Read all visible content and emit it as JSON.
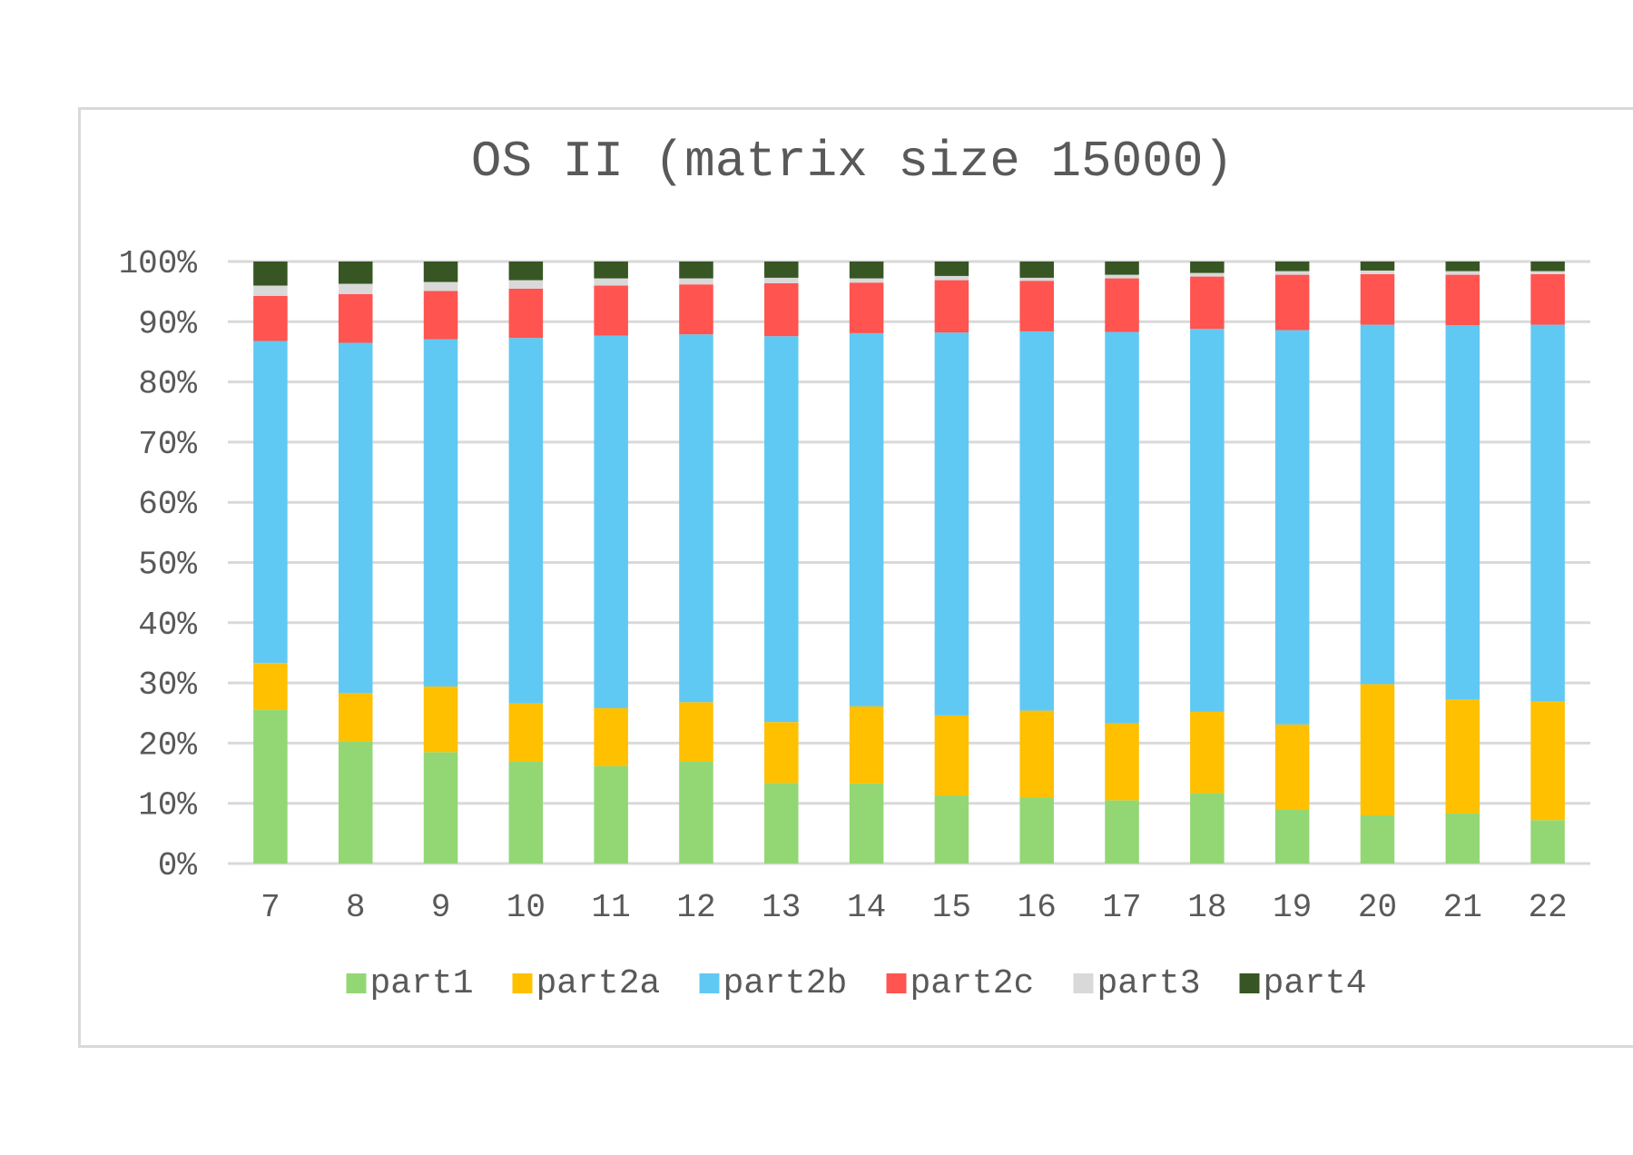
{
  "chart_data": {
    "type": "bar",
    "stacked": true,
    "percent_stacked": true,
    "title": "OS II (matrix size 15000)",
    "xlabel": "",
    "ylabel": "",
    "categories": [
      "7",
      "8",
      "9",
      "10",
      "11",
      "12",
      "13",
      "14",
      "15",
      "16",
      "17",
      "18",
      "19",
      "20",
      "21",
      "22"
    ],
    "ylim": [
      0,
      100
    ],
    "yticks": [
      0,
      10,
      20,
      30,
      40,
      50,
      60,
      70,
      80,
      90,
      100
    ],
    "ytick_labels": [
      "0%",
      "10%",
      "20%",
      "30%",
      "40%",
      "50%",
      "60%",
      "70%",
      "80%",
      "90%",
      "100%"
    ],
    "grid": true,
    "legend_position": "bottom",
    "series": [
      {
        "name": "part1",
        "color": "#92d774",
        "values": [
          25.5,
          20.3,
          18.5,
          16.9,
          16.2,
          16.9,
          13.4,
          13.3,
          11.3,
          11.0,
          10.5,
          11.7,
          8.9,
          8.0,
          8.3,
          7.2
        ]
      },
      {
        "name": "part2a",
        "color": "#ffc000",
        "values": [
          7.8,
          8.0,
          10.9,
          9.7,
          9.6,
          9.9,
          10.1,
          12.8,
          13.3,
          14.4,
          12.8,
          13.5,
          14.2,
          21.8,
          19.0,
          19.7
        ]
      },
      {
        "name": "part2b",
        "color": "#60c9f3",
        "values": [
          53.5,
          58.2,
          57.7,
          60.7,
          61.9,
          61.1,
          64.1,
          62.0,
          63.6,
          63.0,
          65.0,
          63.6,
          65.5,
          59.7,
          62.1,
          62.6
        ]
      },
      {
        "name": "part2c",
        "color": "#ff5450",
        "values": [
          7.5,
          8.1,
          8.0,
          8.2,
          8.3,
          8.3,
          8.8,
          8.4,
          8.7,
          8.4,
          8.9,
          8.7,
          9.2,
          8.4,
          8.4,
          8.4
        ]
      },
      {
        "name": "part3",
        "color": "#d9d9d9",
        "values": [
          1.7,
          1.7,
          1.5,
          1.4,
          1.2,
          1.0,
          0.9,
          0.7,
          0.7,
          0.5,
          0.6,
          0.6,
          0.6,
          0.6,
          0.6,
          0.5
        ]
      },
      {
        "name": "part4",
        "color": "#375623",
        "values": [
          4.0,
          3.7,
          3.4,
          3.1,
          2.8,
          2.8,
          2.7,
          2.8,
          2.4,
          2.7,
          2.2,
          1.9,
          1.6,
          1.5,
          1.6,
          1.6
        ]
      }
    ]
  }
}
